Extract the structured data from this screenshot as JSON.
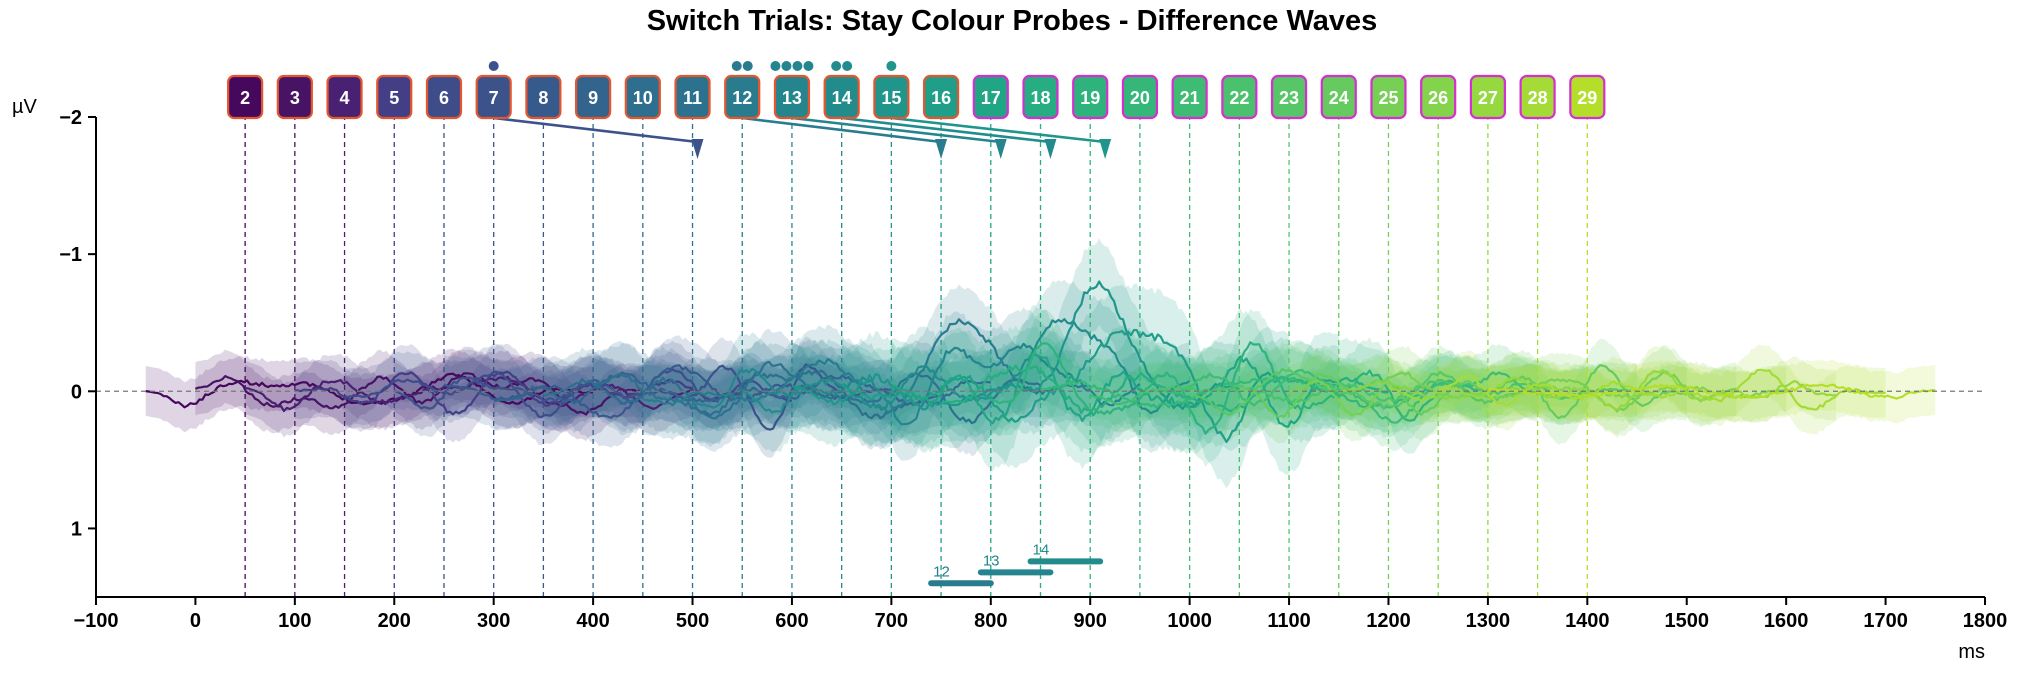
{
  "chart_data": {
    "type": "line",
    "title": "Switch Trials: Stay Colour Probes - Difference Waves",
    "xlabel": "ms",
    "ylabel": "µV",
    "xlim": [
      -100,
      1800
    ],
    "ylim": [
      -2,
      1.5
    ],
    "y_inverted": true,
    "x_ticks": [
      "−100",
      "0",
      "100",
      "200",
      "300",
      "400",
      "500",
      "600",
      "700",
      "800",
      "900",
      "1000",
      "1100",
      "1200",
      "1300",
      "1400",
      "1500",
      "1600",
      "1700",
      "1800"
    ],
    "x_tick_values": [
      -100,
      0,
      100,
      200,
      300,
      400,
      500,
      600,
      700,
      800,
      900,
      1000,
      1100,
      1200,
      1300,
      1400,
      1500,
      1600,
      1700,
      1800
    ],
    "y_ticks": [
      "−2",
      "−1",
      "0",
      "1"
    ],
    "y_tick_values": [
      -2,
      -1,
      0,
      1
    ],
    "zero_line": true,
    "probes": [
      {
        "label": "2",
        "onset": 50,
        "color": "#46085c",
        "border": "#e4572e",
        "dots": 0
      },
      {
        "label": "3",
        "onset": 100,
        "color": "#471365",
        "border": "#e4572e",
        "dots": 0
      },
      {
        "label": "4",
        "onset": 150,
        "color": "#482173",
        "border": "#e4572e",
        "dots": 0
      },
      {
        "label": "5",
        "onset": 200,
        "color": "#433e85",
        "border": "#e4572e",
        "dots": 0
      },
      {
        "label": "6",
        "onset": 250,
        "color": "#3e4c8a",
        "border": "#e4572e",
        "dots": 0
      },
      {
        "label": "7",
        "onset": 300,
        "color": "#3b528b",
        "border": "#e4572e",
        "dots": 1
      },
      {
        "label": "8",
        "onset": 350,
        "color": "#375a8c",
        "border": "#e4572e",
        "dots": 0
      },
      {
        "label": "9",
        "onset": 400,
        "color": "#32648e",
        "border": "#e4572e",
        "dots": 0
      },
      {
        "label": "10",
        "onset": 450,
        "color": "#2e6e8e",
        "border": "#e4572e",
        "dots": 0
      },
      {
        "label": "11",
        "onset": 500,
        "color": "#2c728e",
        "border": "#e4572e",
        "dots": 0
      },
      {
        "label": "12",
        "onset": 550,
        "color": "#287c8e",
        "border": "#e4572e",
        "dots": 2
      },
      {
        "label": "13",
        "onset": 600,
        "color": "#25858e",
        "border": "#e4572e",
        "dots": 4
      },
      {
        "label": "14",
        "onset": 650,
        "color": "#228c8d",
        "border": "#e4572e",
        "dots": 2
      },
      {
        "label": "15",
        "onset": 700,
        "color": "#1f958b",
        "border": "#e4572e",
        "dots": 1
      },
      {
        "label": "16",
        "onset": 750,
        "color": "#1f9e89",
        "border": "#e4572e",
        "dots": 0
      },
      {
        "label": "17",
        "onset": 800,
        "color": "#21a685",
        "border": "#d62fd0",
        "dots": 0
      },
      {
        "label": "18",
        "onset": 850,
        "color": "#26ad81",
        "border": "#d62fd0",
        "dots": 0
      },
      {
        "label": "19",
        "onset": 900,
        "color": "#2eb37c",
        "border": "#d62fd0",
        "dots": 0
      },
      {
        "label": "20",
        "onset": 950,
        "color": "#35b779",
        "border": "#d62fd0",
        "dots": 0
      },
      {
        "label": "21",
        "onset": 1000,
        "color": "#3fbc73",
        "border": "#d62fd0",
        "dots": 0
      },
      {
        "label": "22",
        "onset": 1050,
        "color": "#4ac16d",
        "border": "#d62fd0",
        "dots": 0
      },
      {
        "label": "23",
        "onset": 1100,
        "color": "#56c667",
        "border": "#d62fd0",
        "dots": 0
      },
      {
        "label": "24",
        "onset": 1150,
        "color": "#65cb5e",
        "border": "#d62fd0",
        "dots": 0
      },
      {
        "label": "25",
        "onset": 1200,
        "color": "#75d054",
        "border": "#d62fd0",
        "dots": 0
      },
      {
        "label": "26",
        "onset": 1250,
        "color": "#84d44b",
        "border": "#d62fd0",
        "dots": 0
      },
      {
        "label": "27",
        "onset": 1300,
        "color": "#95d840",
        "border": "#d62fd0",
        "dots": 0
      },
      {
        "label": "28",
        "onset": 1350,
        "color": "#a5db36",
        "border": "#d62fd0",
        "dots": 0
      },
      {
        "label": "29",
        "onset": 1400,
        "color": "#b5de2b",
        "border": "#d62fd0",
        "dots": 0
      }
    ],
    "arrows": [
      {
        "from": 300,
        "to": 505,
        "color": "#3b528b"
      },
      {
        "from": 550,
        "to": 750,
        "color": "#287c8e"
      },
      {
        "from": 600,
        "to": 810,
        "color": "#25858e"
      },
      {
        "from": 650,
        "to": 860,
        "color": "#228c8d"
      },
      {
        "from": 700,
        "to": 915,
        "color": "#1f958b"
      }
    ],
    "significance_bars": [
      {
        "label": "12",
        "x_start": 740,
        "x_end": 800,
        "y": 1.4,
        "color": "#287c8e"
      },
      {
        "label": "13",
        "x_start": 790,
        "x_end": 860,
        "y": 1.32,
        "color": "#25858e"
      },
      {
        "label": "14",
        "x_start": 840,
        "x_end": 910,
        "y": 1.24,
        "color": "#228c8d"
      }
    ],
    "series_amplitude": [
      0.11,
      0.12,
      0.12,
      0.13,
      0.13,
      0.13,
      0.14,
      0.14,
      0.15,
      0.16,
      0.17,
      0.18,
      0.2,
      0.22,
      0.24,
      0.25,
      0.2,
      0.16,
      0.14,
      0.13,
      0.12,
      0.12,
      0.12,
      0.12,
      0.11,
      0.11,
      0.11,
      0.11
    ]
  }
}
